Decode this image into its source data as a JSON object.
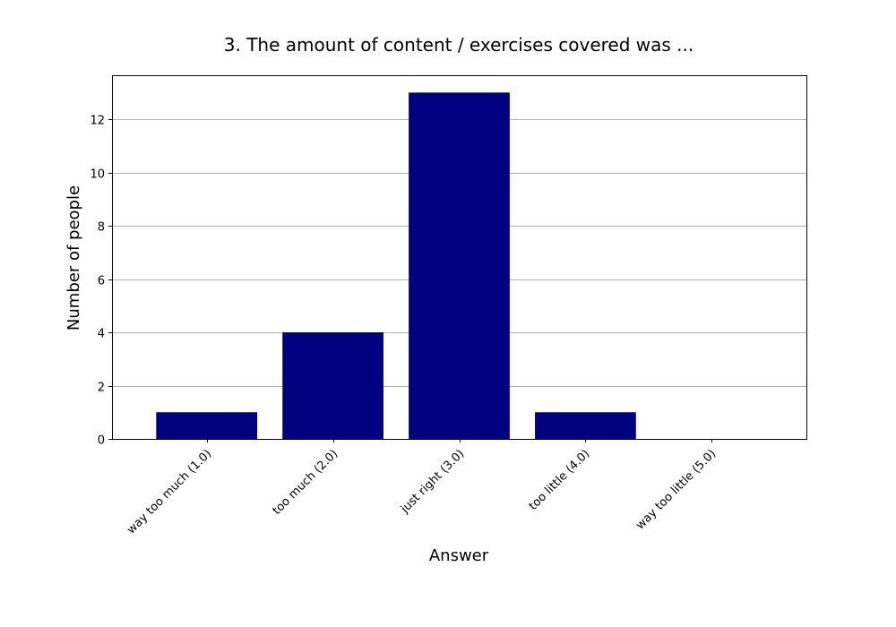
{
  "chart_data": {
    "type": "bar",
    "title": "3. The amount of content / exercises covered was ...",
    "xlabel": "Answer",
    "ylabel": "Number of people",
    "categories": [
      "way too much (1.0)",
      "too much (2.0)",
      "just right (3.0)",
      "too little (4.0)",
      "way too little (5.0)"
    ],
    "values": [
      1,
      4,
      13,
      1,
      0
    ],
    "ylim": [
      0,
      13.65
    ],
    "yticks": [
      0,
      2,
      4,
      6,
      8,
      10,
      12
    ],
    "grid": "y",
    "legend": "none",
    "bar_color": "#000080"
  }
}
